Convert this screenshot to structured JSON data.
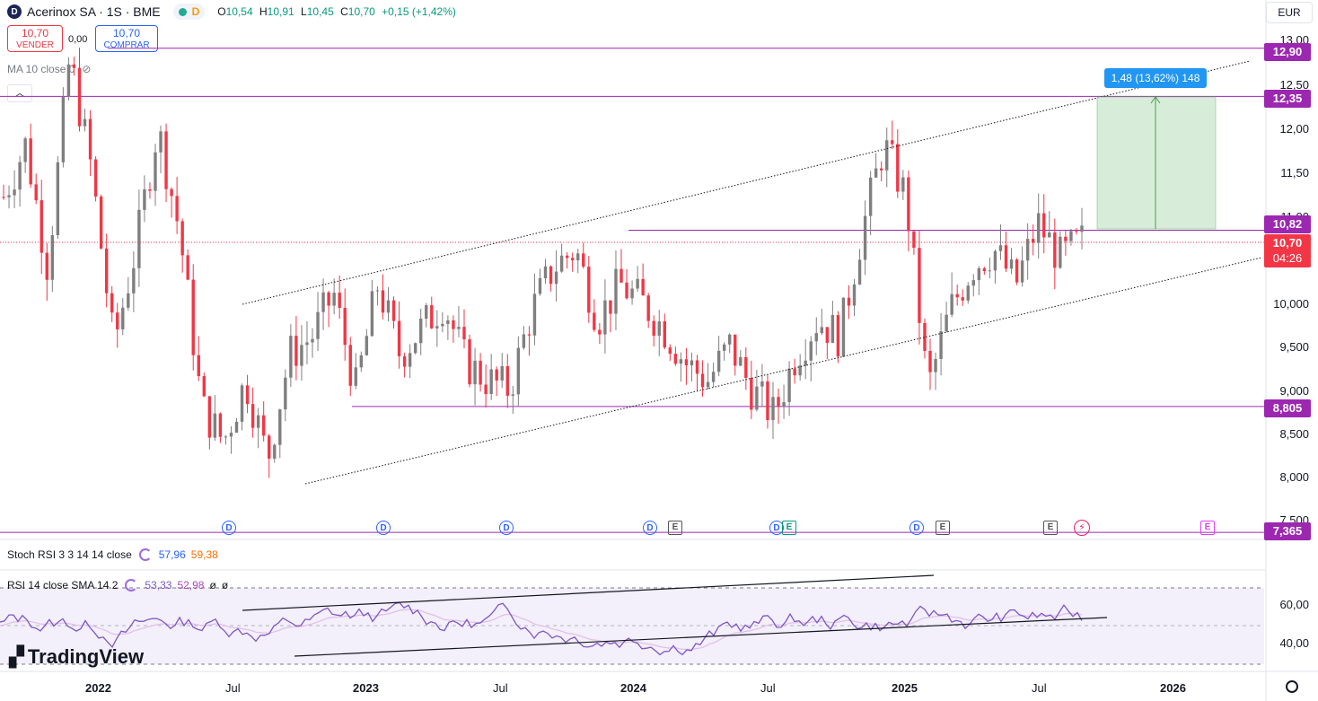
{
  "header": {
    "title": "Acerinox SA · 1S · BME",
    "logo_letter": "D",
    "timeframe_badge": "D",
    "ohlc": {
      "o_label": "O",
      "o": "10,54",
      "h_label": "H",
      "h": "10,91",
      "l_label": "L",
      "l": "10,45",
      "c_label": "C",
      "c": "10,70",
      "change": "+0,15 (+1,42%)"
    }
  },
  "trade": {
    "sell_price": "10,70",
    "sell_label": "VENDER",
    "spread": "0,00",
    "buy_price": "10,70",
    "buy_label": "COMPRAR"
  },
  "ma_label": "MA 10 close 0",
  "currency": "EUR",
  "price_axis": {
    "ticks": [
      "13,00",
      "12,50",
      "12,00",
      "11,50",
      "11,00",
      "10,000",
      "9,500",
      "9,000",
      "8,500",
      "8,000",
      "7,500"
    ]
  },
  "price_labels": [
    {
      "text": "12,90",
      "color": "#9c27b0"
    },
    {
      "text": "12,35",
      "color": "#9c27b0"
    },
    {
      "text": "10,82",
      "color": "#9c27b0"
    },
    {
      "text": "10,70",
      "color": "#f23645"
    },
    {
      "text": "04:26",
      "color": "#f23645"
    },
    {
      "text": "8,805",
      "color": "#9c27b0"
    },
    {
      "text": "7,365",
      "color": "#9c27b0"
    }
  ],
  "measure_label": "1,48 (13,62%) 148",
  "stoch": {
    "label": "Stoch RSI 3 3 14 14 close",
    "k": "57,96",
    "d": "59,38",
    "k_color": "#2962ff",
    "d_color": "#ff6d00"
  },
  "rsi": {
    "label": "RSI 14 close SMA 14 2",
    "v1": "53,33",
    "v2": "52,98",
    "v3": "ø",
    "v4": "ø",
    "ticks": [
      "60,00",
      "40,00"
    ]
  },
  "x_axis": [
    "2022",
    "Jul",
    "2023",
    "Jul",
    "2024",
    "Jul",
    "2025",
    "Jul",
    "2026"
  ],
  "events": [
    "D",
    "D",
    "D",
    "D",
    "E",
    "D",
    "E",
    "D",
    "E",
    "E",
    "E"
  ],
  "brand": "TradingView",
  "colors": {
    "up": "#7f7f7f",
    "down": "#f23645",
    "level": "#9c27b0",
    "rsi_line": "#7e57c2",
    "rsi_bg": "#f3effb"
  },
  "chart_data": {
    "type": "candlestick",
    "ylim": [
      7.365,
      13.0
    ],
    "levels": [
      12.9,
      12.35,
      10.82,
      8.805,
      7.365
    ],
    "last_price": 10.7,
    "close_series_approx": [
      11.2,
      11.8,
      10.4,
      12.8,
      11.5,
      9.5,
      10.6,
      12.0,
      10.8,
      8.8,
      8.4,
      9.1,
      8.2,
      9.4,
      9.6,
      10.1,
      9.0,
      10.2,
      9.4,
      9.7,
      10.0,
      9.3,
      9.1,
      9.0,
      9.9,
      10.4,
      10.6,
      9.8,
      10.2,
      10.0,
      9.7,
      9.3,
      9.1,
      9.5,
      9.0,
      8.7,
      9.4,
      9.8,
      9.6,
      10.8,
      11.8,
      11.2,
      9.0,
      9.9,
      10.4,
      10.6,
      10.2,
      10.9,
      10.5,
      10.7
    ]
  }
}
